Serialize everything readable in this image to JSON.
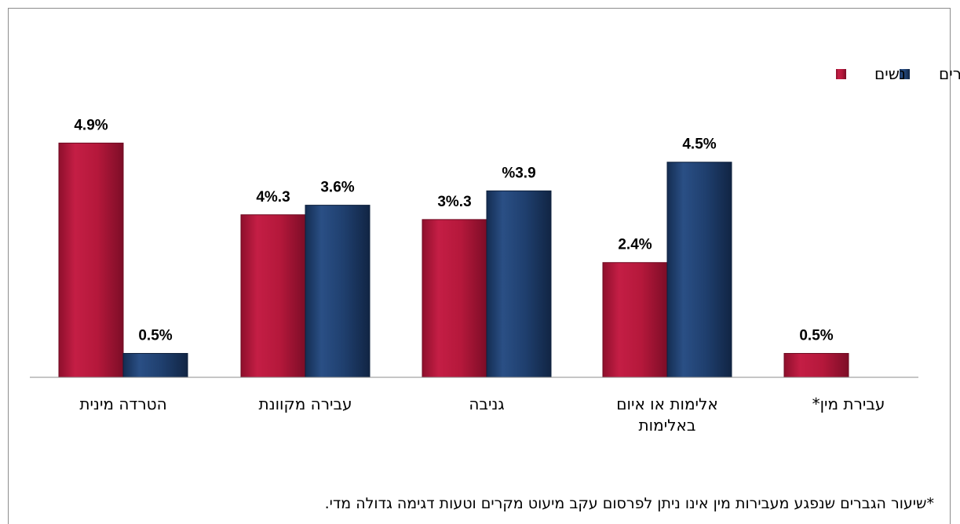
{
  "chart_data": {
    "type": "bar",
    "categories": [
      [
        "הטרדה מינית"
      ],
      [
        "עבירה מקוונת"
      ],
      [
        "גניבה"
      ],
      [
        "אלימות או איום",
        "באלימות"
      ],
      [
        "עבירת מין*"
      ]
    ],
    "series": [
      {
        "name": "נשים",
        "color": "#b5183b",
        "values": [
          4.9,
          3.4,
          3.3,
          2.4,
          0.5
        ],
        "labels": [
          "4.9%",
          "4%.3",
          "3%.3",
          "2.4%",
          "0.5%"
        ]
      },
      {
        "name": "גברים",
        "color": "#1f3f6e",
        "values": [
          0.5,
          3.6,
          3.9,
          4.5,
          null
        ],
        "labels": [
          "0.5%",
          "3.6%",
          "%3.9",
          "4.5%",
          null
        ]
      }
    ],
    "ylim": [
      0,
      5.5
    ],
    "grid": false,
    "legend_position": "top-right"
  },
  "footnote": "*שיעור הגברים שנפגע מעבירות מין אינו ניתן לפרסום עקב מיעוט מקרים וטעות דגימה גדולה מדי."
}
